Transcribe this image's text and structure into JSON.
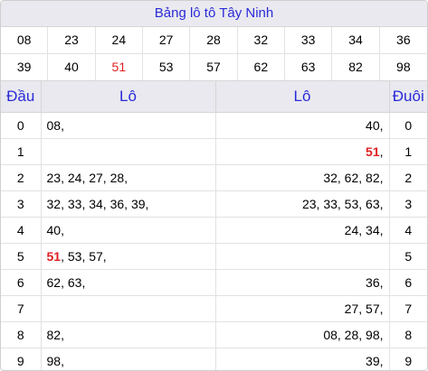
{
  "title": "Bảng lô tô Tây Ninh",
  "numbers": [
    {
      "v": "08",
      "red": false
    },
    {
      "v": "23",
      "red": false
    },
    {
      "v": "24",
      "red": false
    },
    {
      "v": "27",
      "red": false
    },
    {
      "v": "28",
      "red": false
    },
    {
      "v": "32",
      "red": false
    },
    {
      "v": "33",
      "red": false
    },
    {
      "v": "34",
      "red": false
    },
    {
      "v": "36",
      "red": false
    },
    {
      "v": "39",
      "red": false
    },
    {
      "v": "40",
      "red": false
    },
    {
      "v": "51",
      "red": true
    },
    {
      "v": "53",
      "red": false
    },
    {
      "v": "57",
      "red": false
    },
    {
      "v": "62",
      "red": false
    },
    {
      "v": "63",
      "red": false
    },
    {
      "v": "82",
      "red": false
    },
    {
      "v": "98",
      "red": false
    }
  ],
  "headers": {
    "dau": "Đầu",
    "lo_left": "Lô",
    "lo_right": "Lô",
    "duoi": "Đuôi"
  },
  "highlight": "51",
  "rows": [
    {
      "digit": "0",
      "left": [
        "08"
      ],
      "right": [
        "40"
      ]
    },
    {
      "digit": "1",
      "left": [],
      "right": [
        "51"
      ]
    },
    {
      "digit": "2",
      "left": [
        "23",
        "24",
        "27",
        "28"
      ],
      "right": [
        "32",
        "62",
        "82"
      ]
    },
    {
      "digit": "3",
      "left": [
        "32",
        "33",
        "34",
        "36",
        "39"
      ],
      "right": [
        "23",
        "33",
        "53",
        "63"
      ]
    },
    {
      "digit": "4",
      "left": [
        "40"
      ],
      "right": [
        "24",
        "34"
      ]
    },
    {
      "digit": "5",
      "left": [
        "51",
        "53",
        "57"
      ],
      "right": []
    },
    {
      "digit": "6",
      "left": [
        "62",
        "63"
      ],
      "right": [
        "36"
      ]
    },
    {
      "digit": "7",
      "left": [],
      "right": [
        "27",
        "57"
      ]
    },
    {
      "digit": "8",
      "left": [
        "82"
      ],
      "right": [
        "08",
        "28",
        "98"
      ]
    },
    {
      "digit": "9",
      "left": [
        "98"
      ],
      "right": [
        "39"
      ]
    }
  ],
  "colors": {
    "accent": "#2a2ad8",
    "red": "#e02020",
    "header_bg": "#e9e9ef"
  }
}
